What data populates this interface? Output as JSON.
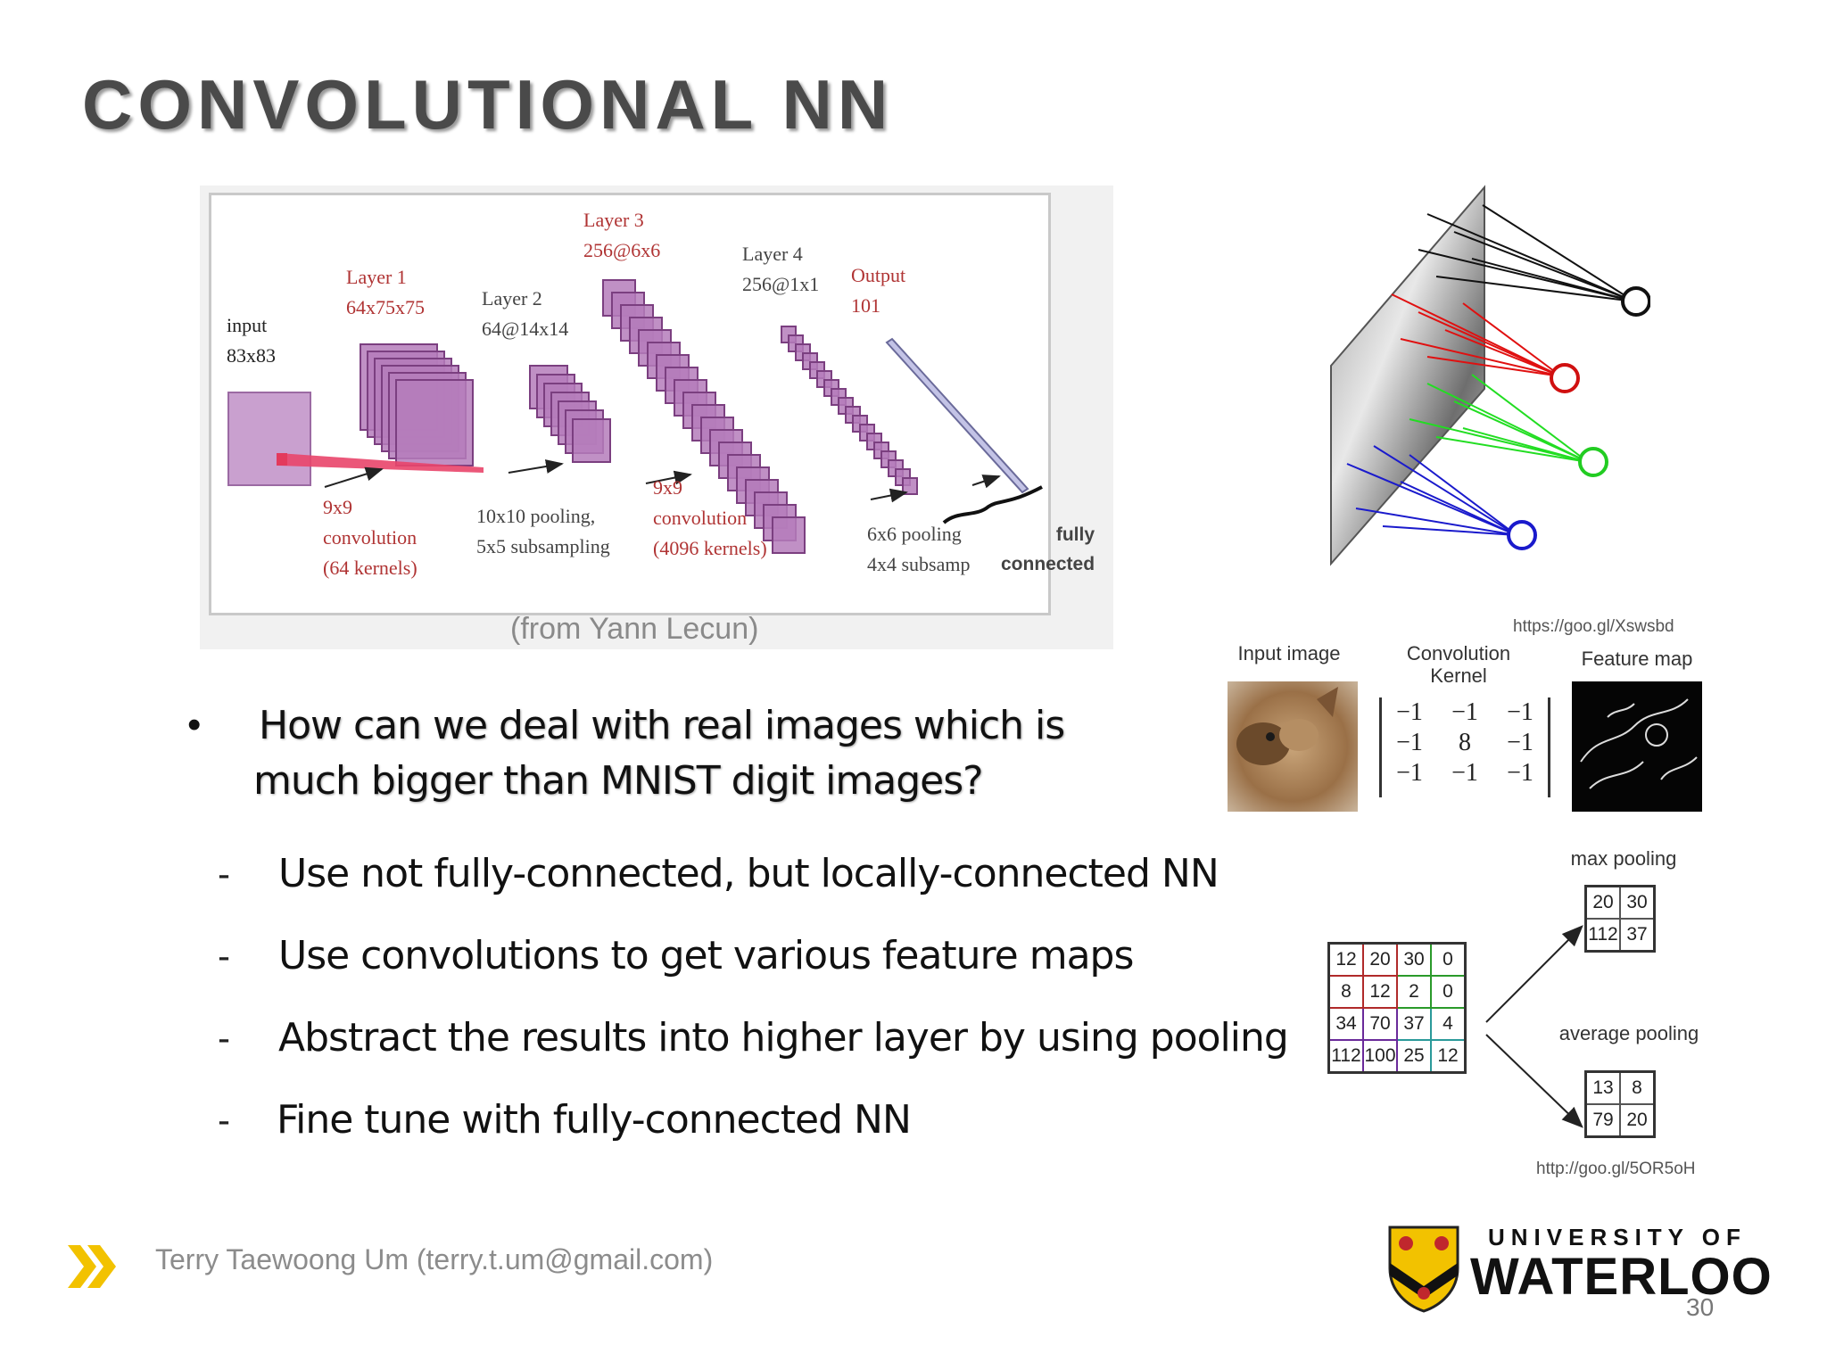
{
  "slide": {
    "title": "CONVOLUTIONAL NN",
    "page_number": "30",
    "author": "Terry Taewoong Um (terry.t.um@gmail.com)"
  },
  "lecun_figure": {
    "credit": "(from Yann Lecun)",
    "input_label": "input",
    "input_size": "83x83",
    "layer1_label": "Layer 1",
    "layer1_size": "64x75x75",
    "layer2_label": "Layer 2",
    "layer2_size": "64@14x14",
    "layer3_label": "Layer 3",
    "layer3_size": "256@6x6",
    "layer4_label": "Layer 4",
    "layer4_size": "256@1x1",
    "output_label": "Output",
    "output_size": "101",
    "conv1_a": "9x9",
    "conv1_b": "convolution",
    "conv1_c": "(64 kernels)",
    "pool1_a": "10x10 pooling,",
    "pool1_b": "5x5 subsampling",
    "conv2_a": "9x9",
    "conv2_b": "convolution",
    "conv2_c": "(4096 kernels)",
    "pool2_a": "6x6 pooling",
    "pool2_b": "4x4 subsamp",
    "fc_a": "fully",
    "fc_b": "connected"
  },
  "bullets": {
    "question_line1": "How can we deal with real images which is",
    "question_line2": "much bigger than MNIST digit images?",
    "dash": "-",
    "items": [
      "Use not fully-connected, but locally-connected NN",
      "Use convolutions to get various feature maps",
      "Abstract the results into higher layer by using pooling",
      "Fine tune with fully-connected NN"
    ]
  },
  "conv_figure": {
    "url": "https://goo.gl/Xswsbd",
    "input_label": "Input image",
    "kernel_label_1": "Convolution",
    "kernel_label_2": "Kernel",
    "feature_label": "Feature map",
    "kernel": [
      [
        "−1",
        "−1",
        "−1"
      ],
      [
        "−1",
        "8",
        "−1"
      ],
      [
        "−1",
        "−1",
        "−1"
      ]
    ]
  },
  "pool_figure": {
    "url": "http://goo.gl/5OR5oH",
    "max_label": "max pooling",
    "avg_label": "average pooling",
    "input": [
      [
        "12",
        "20",
        "30",
        "0"
      ],
      [
        "8",
        "12",
        "2",
        "0"
      ],
      [
        "34",
        "70",
        "37",
        "4"
      ],
      [
        "112",
        "100",
        "25",
        "12"
      ]
    ],
    "max": [
      [
        "20",
        "30"
      ],
      [
        "112",
        "37"
      ]
    ],
    "avg": [
      [
        "13",
        "8"
      ],
      [
        "79",
        "20"
      ]
    ]
  },
  "logo": {
    "line1": "UNIVERSITY OF",
    "line2": "WATERLOO"
  },
  "colors": {
    "accent_red": "#b03434",
    "layer_purple": "#a65aa8",
    "arrow_gold": "#f2c200"
  }
}
